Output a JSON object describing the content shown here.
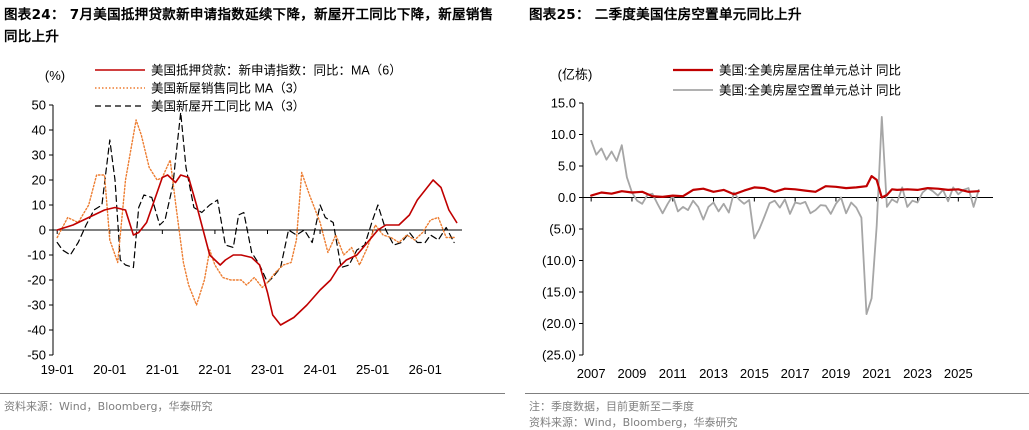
{
  "left": {
    "title": "图表24： 7月美国抵押贷款新申请指数延续下降，新屋开工同比下降，新屋销售同比上升",
    "source": "资料来源：Wind，Bloomberg，华泰研究"
  },
  "right": {
    "title": "图表25： 二季度美国住房空置单元同比上升",
    "note": "注：季度数据，目前更新至二季度",
    "source": "资料来源：Wind，Bloomberg，华泰研究"
  },
  "chart_data": [
    {
      "type": "line",
      "unit_label": "(%)",
      "x_ticks": [
        "19-01",
        "20-01",
        "21-01",
        "22-01",
        "23-01",
        "24-01",
        "25-01",
        "26-01"
      ],
      "ylim": [
        -50,
        50
      ],
      "y_ticks": [
        50,
        40,
        30,
        20,
        10,
        0,
        -10,
        -20,
        -30,
        -40,
        -50
      ],
      "legend_position": "top",
      "series": [
        {
          "name": "美国抵押贷款：新申请指数：同比：MA（6）",
          "color": "#c00000",
          "style": "solid",
          "x": [
            2019.0,
            2019.3,
            2019.6,
            2019.9,
            2020.1,
            2020.3,
            2020.45,
            2020.55,
            2020.7,
            2020.9,
            2021.0,
            2021.1,
            2021.25,
            2021.35,
            2021.5,
            2021.65,
            2021.9,
            2022.1,
            2022.2,
            2022.35,
            2022.5,
            2022.7,
            2022.85,
            2023.0,
            2023.1,
            2023.25,
            2023.5,
            2023.75,
            2024.0,
            2024.2,
            2024.35,
            2024.5,
            2024.7,
            2024.9,
            2025.1,
            2025.25,
            2025.5,
            2025.7,
            2025.85,
            2026.0,
            2026.15,
            2026.3,
            2026.45,
            2026.6
          ],
          "y": [
            0,
            2,
            5,
            8,
            9,
            8,
            -2,
            -1,
            3,
            15,
            21,
            22,
            19,
            22,
            21,
            10,
            -10,
            -14,
            -12,
            -10,
            -10,
            -11,
            -14,
            -25,
            -34,
            -38,
            -35,
            -30,
            -24,
            -20,
            -15,
            -12,
            -10,
            -5,
            0,
            2,
            2,
            6,
            12,
            16,
            20,
            17,
            8,
            3
          ]
        },
        {
          "name": "美国新屋销售同比 MA（3）",
          "color": "#ed7d31",
          "style": "dotted",
          "x": [
            2019.0,
            2019.2,
            2019.4,
            2019.6,
            2019.75,
            2019.9,
            2020.0,
            2020.15,
            2020.3,
            2020.5,
            2020.6,
            2020.75,
            2020.9,
            2021.0,
            2021.15,
            2021.25,
            2021.4,
            2021.5,
            2021.65,
            2021.8,
            2021.9,
            2022.0,
            2022.15,
            2022.3,
            2022.5,
            2022.6,
            2022.75,
            2022.9,
            2023.0,
            2023.15,
            2023.3,
            2023.45,
            2023.55,
            2023.65,
            2023.8,
            2024.0,
            2024.15,
            2024.3,
            2024.45,
            2024.6,
            2024.75,
            2024.9,
            2025.05,
            2025.2,
            2025.35,
            2025.5,
            2025.65,
            2025.8,
            2025.95,
            2026.1,
            2026.25,
            2026.4,
            2026.55
          ],
          "y": [
            -3,
            5,
            3,
            10,
            22,
            22,
            -4,
            -13,
            20,
            44,
            38,
            25,
            20,
            21,
            28,
            11,
            -13,
            -22,
            -30,
            -20,
            -8,
            -14,
            -19,
            -20,
            -20,
            -22,
            -19,
            -23,
            -21,
            -17,
            -14,
            -13,
            -4,
            23,
            14,
            3,
            -9,
            -2,
            -10,
            -7,
            -14,
            -7,
            2,
            -2,
            -3,
            -5,
            -2,
            -4,
            -1,
            4,
            5,
            -3,
            -3
          ]
        },
        {
          "name": "美国新屋开工同比 MA（3）",
          "color": "#000000",
          "style": "dashed",
          "x": [
            2019.0,
            2019.1,
            2019.25,
            2019.4,
            2019.55,
            2019.7,
            2019.85,
            2020.0,
            2020.1,
            2020.2,
            2020.3,
            2020.45,
            2020.55,
            2020.65,
            2020.8,
            2020.95,
            2021.05,
            2021.2,
            2021.25,
            2021.35,
            2021.45,
            2021.6,
            2021.75,
            2021.9,
            2022.05,
            2022.2,
            2022.35,
            2022.45,
            2022.55,
            2022.7,
            2022.85,
            2023.0,
            2023.1,
            2023.25,
            2023.4,
            2023.55,
            2023.7,
            2023.85,
            2024.0,
            2024.1,
            2024.25,
            2024.4,
            2024.55,
            2024.7,
            2024.85,
            2025.0,
            2025.1,
            2025.25,
            2025.4,
            2025.55,
            2025.7,
            2025.85,
            2026.0,
            2026.1,
            2026.25,
            2026.4,
            2026.55
          ],
          "y": [
            -5,
            -8,
            -10,
            -5,
            2,
            8,
            10,
            36,
            20,
            -12,
            -14,
            -15,
            9,
            14,
            13,
            2,
            4,
            18,
            28,
            47,
            25,
            9,
            7,
            10,
            12,
            -6,
            -7,
            6,
            7,
            -9,
            -14,
            -21,
            -19,
            -15,
            0,
            -2,
            0,
            -5,
            10,
            5,
            3,
            -15,
            -14,
            -8,
            -6,
            4,
            10,
            0,
            -6,
            -5,
            -1,
            -5,
            -5,
            -2,
            -4,
            1,
            -5
          ]
        }
      ]
    },
    {
      "type": "line",
      "unit_label": "(亿栋)",
      "x_ticks": [
        "2007",
        "2009",
        "2011",
        "2013",
        "2015",
        "2017",
        "2019",
        "2021",
        "2023",
        "2025"
      ],
      "ylim": [
        -25,
        15
      ],
      "y_ticks": [
        "15.0",
        "10.0",
        "5.0",
        "0.0",
        "(5.0)",
        "(10.0)",
        "(15.0)",
        "(20.0)",
        "(25.0)"
      ],
      "legend_position": "top",
      "series": [
        {
          "name": "美国:全美房屋居住单元总计 同比",
          "color": "#c00000",
          "style": "solid",
          "x": [
            2007.0,
            2007.5,
            2008.0,
            2008.5,
            2009.0,
            2009.5,
            2010.0,
            2010.5,
            2011.0,
            2011.5,
            2012.0,
            2012.5,
            2013.0,
            2013.5,
            2014.0,
            2014.5,
            2015.0,
            2015.5,
            2016.0,
            2016.5,
            2017.0,
            2017.5,
            2018.0,
            2018.5,
            2019.0,
            2019.5,
            2020.0,
            2020.5,
            2020.75,
            2021.0,
            2021.25,
            2021.5,
            2021.75,
            2022.0,
            2022.5,
            2023.0,
            2023.5,
            2024.0,
            2024.5,
            2025.0,
            2025.5,
            2026.0
          ],
          "y": [
            0.3,
            0.8,
            0.6,
            1.0,
            0.8,
            0.9,
            0.2,
            0.1,
            0.3,
            0.2,
            1.2,
            1.4,
            0.9,
            1.2,
            0.5,
            1.1,
            1.6,
            1.5,
            0.9,
            1.4,
            1.3,
            1.1,
            0.9,
            1.8,
            1.7,
            1.5,
            1.6,
            1.8,
            3.4,
            2.8,
            0.0,
            0.4,
            1.3,
            1.2,
            1.3,
            1.2,
            1.5,
            1.4,
            1.2,
            1.3,
            0.9,
            1.0
          ]
        },
        {
          "name": "美国:全美房屋空置单元总计 同比",
          "color": "#a6a6a6",
          "style": "solid",
          "x": [
            2007.0,
            2007.25,
            2007.5,
            2007.75,
            2008.0,
            2008.25,
            2008.5,
            2008.75,
            2009.0,
            2009.25,
            2009.5,
            2009.75,
            2010.0,
            2010.25,
            2010.5,
            2010.75,
            2011.0,
            2011.25,
            2011.5,
            2011.75,
            2012.0,
            2012.25,
            2012.5,
            2012.75,
            2013.0,
            2013.25,
            2013.5,
            2013.75,
            2014.0,
            2014.25,
            2014.5,
            2014.75,
            2015.0,
            2015.25,
            2015.5,
            2015.75,
            2016.0,
            2016.25,
            2016.5,
            2016.75,
            2017.0,
            2017.25,
            2017.5,
            2017.75,
            2018.0,
            2018.25,
            2018.5,
            2018.75,
            2019.0,
            2019.25,
            2019.5,
            2019.75,
            2020.0,
            2020.25,
            2020.5,
            2020.75,
            2021.0,
            2021.25,
            2021.5,
            2021.75,
            2022.0,
            2022.25,
            2022.5,
            2022.75,
            2023.0,
            2023.25,
            2023.5,
            2023.75,
            2024.0,
            2024.25,
            2024.5,
            2024.75,
            2025.0,
            2025.25,
            2025.5,
            2025.75,
            2026.0
          ],
          "y": [
            9.0,
            6.8,
            7.8,
            6.0,
            7.3,
            5.8,
            8.3,
            3.2,
            0.8,
            -0.5,
            -1.0,
            0.4,
            0.6,
            -1.0,
            -2.5,
            -1.0,
            0.3,
            -2.2,
            -1.5,
            -2.0,
            -0.5,
            -1.5,
            -3.5,
            -1.5,
            -0.8,
            -2.2,
            -1.0,
            -2.4,
            0.8,
            -0.3,
            -1.0,
            -0.4,
            -6.5,
            -5.0,
            -3.0,
            -0.9,
            -0.5,
            -1.6,
            -0.3,
            -2.6,
            -0.8,
            -1.0,
            -0.7,
            -2.5,
            -2.0,
            -1.2,
            -1.3,
            -2.6,
            -1.0,
            0.0,
            -2.5,
            -0.8,
            -1.6,
            -3.2,
            -18.5,
            -16.0,
            -4.5,
            12.8,
            -1.5,
            -0.3,
            -0.8,
            1.6,
            -1.5,
            -0.5,
            -0.8,
            0.8,
            1.5,
            1.0,
            0.3,
            1.2,
            -0.6,
            1.6,
            0.5,
            1.2,
            1.5,
            -1.5,
            1.2
          ]
        }
      ]
    }
  ]
}
